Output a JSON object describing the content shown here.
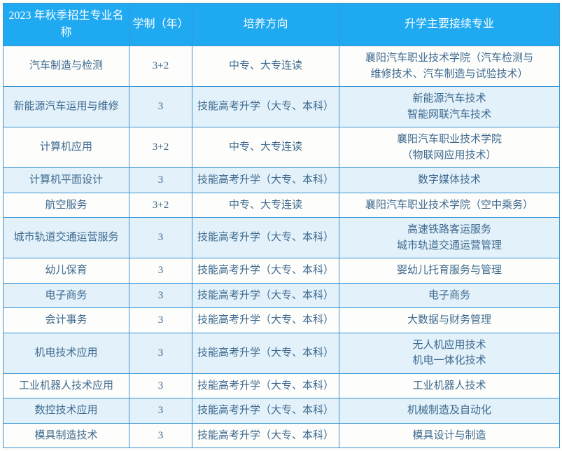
{
  "header_bg": "#1ea9f1",
  "header_fg": "#ffffff",
  "border_color": "#3a95d4",
  "text_color": "#3e6a8f",
  "alt_bg": "#e3f1fa",
  "columns": [
    "2023 年秋季招生专业名称",
    "学制（年）",
    "培养方向",
    "升学主要接续专业"
  ],
  "rows": [
    {
      "alt": false,
      "cells": [
        "汽车制造与检测",
        "3+2",
        "中专、大专连读",
        "襄阳汽车职业技术学院（汽车检测与\n维修技术、汽车制造与试验技术）"
      ]
    },
    {
      "alt": true,
      "cells": [
        "新能源汽车运用与维修",
        "3",
        "技能高考升学（大专、本科）",
        "新能源汽车技术\n智能网联汽车技术"
      ]
    },
    {
      "alt": false,
      "cells": [
        "计算机应用",
        "3+2",
        "中专、大专连读",
        "襄阳汽车职业技术学院\n（物联网应用技术）"
      ]
    },
    {
      "alt": true,
      "cells": [
        "计算机平面设计",
        "3",
        "技能高考升学（大专、本科）",
        "数字媒体技术"
      ]
    },
    {
      "alt": false,
      "cells": [
        "航空服务",
        "3+2",
        "中专、大专连读",
        "襄阳汽车职业技术学院（空中乘务）"
      ]
    },
    {
      "alt": true,
      "cells": [
        "城市轨道交通运营服务",
        "3",
        "技能高考升学（大专、本科）",
        "高速铁路客运服务\n城市轨道交通运营管理"
      ]
    },
    {
      "alt": false,
      "cells": [
        "幼儿保育",
        "3",
        "技能高考升学（大专、本科）",
        "婴幼儿托育服务与管理"
      ]
    },
    {
      "alt": true,
      "cells": [
        "电子商务",
        "3",
        "技能高考升学（大专、本科）",
        "电子商务"
      ]
    },
    {
      "alt": false,
      "cells": [
        "会计事务",
        "3",
        "技能高考升学（大专、本科）",
        "大数据与财务管理"
      ]
    },
    {
      "alt": true,
      "cells": [
        "机电技术应用",
        "3",
        "技能高考升学（大专、本科）",
        "无人机应用技术\n机电一体化技术"
      ]
    },
    {
      "alt": false,
      "cells": [
        "工业机器人技术应用",
        "3",
        "技能高考升学（大专、本科）",
        "工业机器人技术"
      ]
    },
    {
      "alt": true,
      "cells": [
        "数控技术应用",
        "3",
        "技能高考升学（大专、本科）",
        "机械制造及自动化"
      ]
    },
    {
      "alt": false,
      "cells": [
        "模具制造技术",
        "3",
        "技能高考升学（大专、本科）",
        "模具设计与制造"
      ]
    }
  ]
}
